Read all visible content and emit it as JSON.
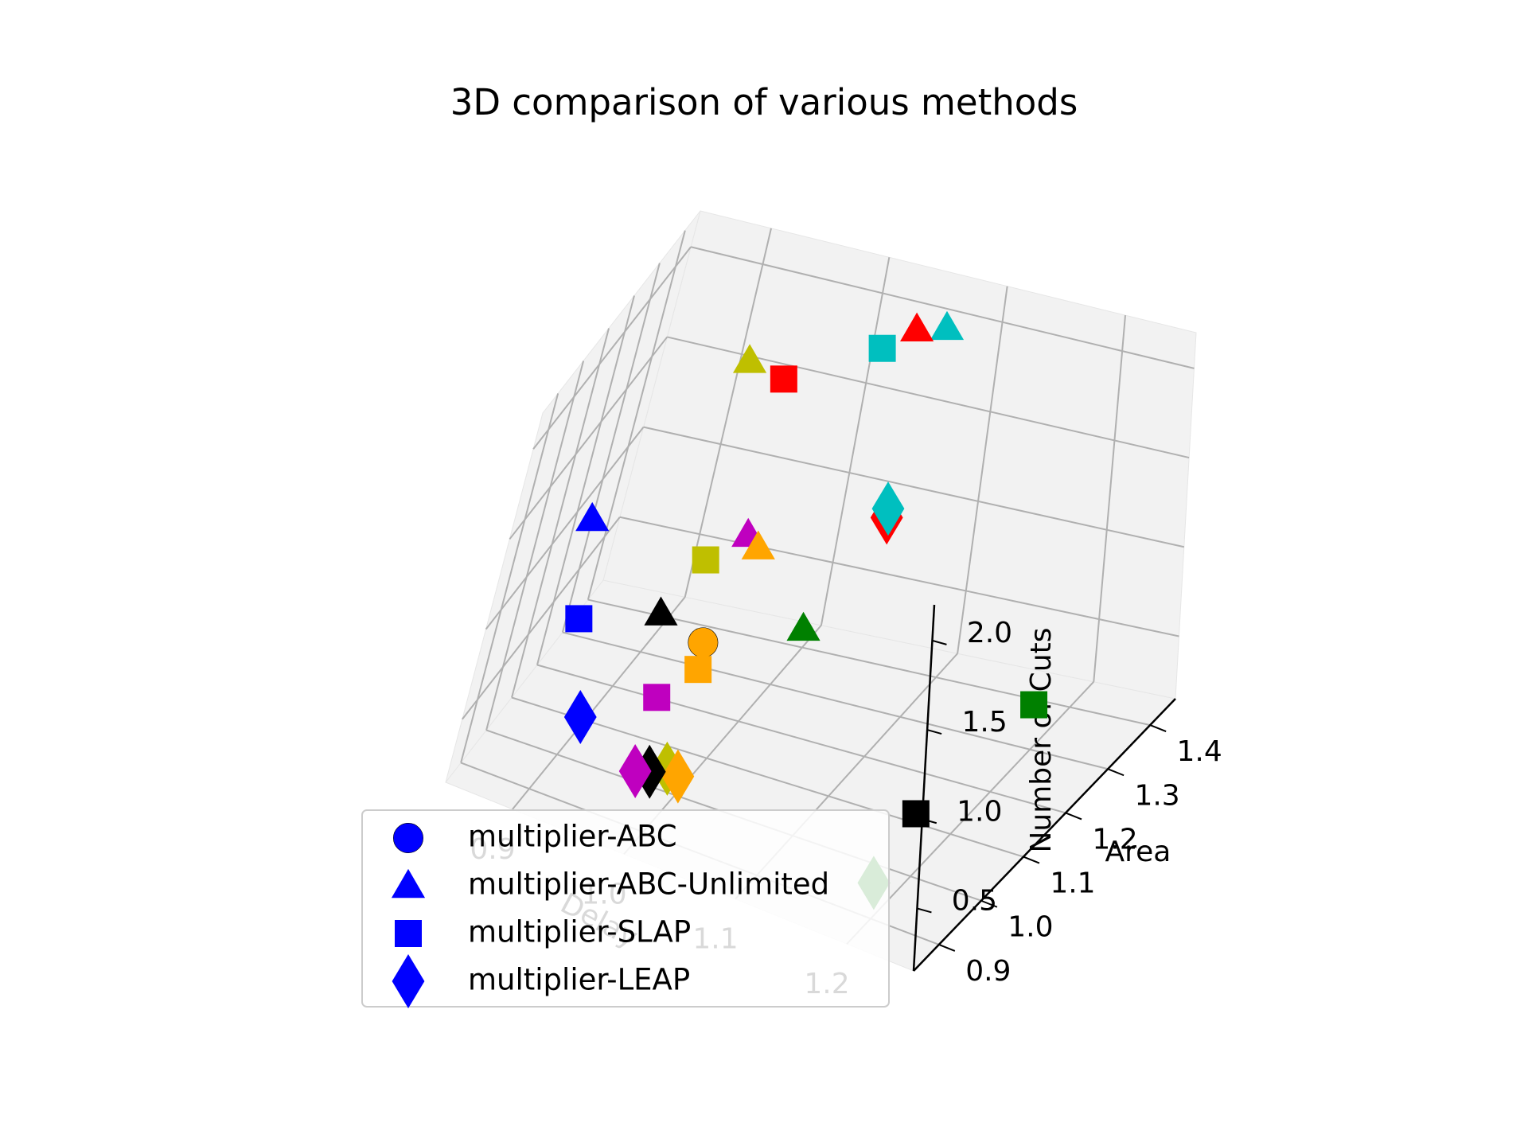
{
  "chart_data": {
    "type": "scatter",
    "projection": "3d",
    "title": "3D comparison of various methods",
    "axes": {
      "x": {
        "label": "Delay",
        "ticks": [
          0.9,
          1.0,
          1.1,
          1.2
        ],
        "tick_labels": [
          "0.9",
          "1.0",
          "1.1",
          "1.2"
        ]
      },
      "y": {
        "label": "Area",
        "ticks": [
          0.9,
          1.0,
          1.1,
          1.2,
          1.3,
          1.4
        ],
        "tick_labels": [
          "0.9",
          "1.0",
          "1.1",
          "1.2",
          "1.3",
          "1.4"
        ]
      },
      "z": {
        "label": "Number of Cuts",
        "ticks": [
          0.5,
          1.0,
          1.5,
          2.0
        ],
        "tick_labels": [
          "0.5",
          "1.0",
          "1.5",
          "2.0"
        ]
      }
    },
    "grid": true,
    "legend": {
      "placement": "lower-left",
      "entries": [
        {
          "label": "multiplier-ABC",
          "marker": "circle",
          "color": "#0000ff"
        },
        {
          "label": "multiplier-ABC-Unlimited",
          "marker": "triangle",
          "color": "#0000ff"
        },
        {
          "label": "multiplier-SLAP",
          "marker": "square",
          "color": "#0000ff"
        },
        {
          "label": "multiplier-LEAP",
          "marker": "diamond",
          "color": "#0000ff"
        }
      ]
    },
    "series": [
      {
        "method": "multiplier-ABC",
        "marker": "circle",
        "points": [
          {
            "delay": 1.0,
            "area": 1.0,
            "cuts": 1.0,
            "color": "#ffa500"
          }
        ]
      },
      {
        "method": "multiplier-ABC-Unlimited",
        "marker": "triangle",
        "points": [
          {
            "delay": 1.05,
            "area": 1.38,
            "cuts": 2.05,
            "color": "#ff0000"
          },
          {
            "delay": 1.07,
            "area": 1.4,
            "cuts": 2.05,
            "color": "#00bfbf"
          },
          {
            "delay": 0.92,
            "area": 1.38,
            "cuts": 1.65,
            "color": "#bfbf00"
          },
          {
            "delay": 0.9,
            "area": 0.9,
            "cuts": 1.65,
            "color": "#0000ff"
          },
          {
            "delay": 0.98,
            "area": 1.2,
            "cuts": 1.15,
            "color": "#bf00bf"
          },
          {
            "delay": 0.99,
            "area": 1.2,
            "cuts": 1.1,
            "color": "#ffa500"
          },
          {
            "delay": 0.95,
            "area": 1.05,
            "cuts": 0.95,
            "color": "#000000"
          },
          {
            "delay": 1.06,
            "area": 1.1,
            "cuts": 1.0,
            "color": "#008000"
          }
        ]
      },
      {
        "method": "multiplier-SLAP",
        "marker": "square",
        "points": [
          {
            "delay": 0.95,
            "area": 1.38,
            "cuts": 1.6,
            "color": "#ff0000"
          },
          {
            "delay": 1.02,
            "area": 1.4,
            "cuts": 1.85,
            "color": "#00bfbf"
          },
          {
            "delay": 0.95,
            "area": 1.2,
            "cuts": 0.95,
            "color": "#bfbf00"
          },
          {
            "delay": 0.9,
            "area": 0.95,
            "cuts": 1.0,
            "color": "#0000ff"
          },
          {
            "delay": 1.0,
            "area": 1.0,
            "cuts": 0.85,
            "color": "#ffa500"
          },
          {
            "delay": 0.98,
            "area": 0.95,
            "cuts": 0.75,
            "color": "#bf00bf"
          },
          {
            "delay": 1.2,
            "area": 1.0,
            "cuts": 0.5,
            "color": "#000000"
          },
          {
            "delay": 1.2,
            "area": 1.3,
            "cuts": 0.4,
            "color": "#008000"
          }
        ]
      },
      {
        "method": "multiplier-LEAP",
        "marker": "diamond",
        "points": [
          {
            "delay": 1.05,
            "area": 1.38,
            "cuts": 1.0,
            "color": "#ff0000"
          },
          {
            "delay": 1.05,
            "area": 1.38,
            "cuts": 1.05,
            "color": "#00bfbf"
          },
          {
            "delay": 0.92,
            "area": 0.95,
            "cuts": 0.5,
            "color": "#0000ff"
          },
          {
            "delay": 0.98,
            "area": 0.92,
            "cuts": 0.4,
            "color": "#bf00bf"
          },
          {
            "delay": 0.99,
            "area": 0.93,
            "cuts": 0.4,
            "color": "#000000"
          },
          {
            "delay": 1.0,
            "area": 0.95,
            "cuts": 0.4,
            "color": "#bfbf00"
          },
          {
            "delay": 1.01,
            "area": 0.95,
            "cuts": 0.38,
            "color": "#ffa500"
          },
          {
            "delay": 1.2,
            "area": 0.9,
            "cuts": 0.35,
            "color": "#008000"
          }
        ]
      }
    ]
  }
}
